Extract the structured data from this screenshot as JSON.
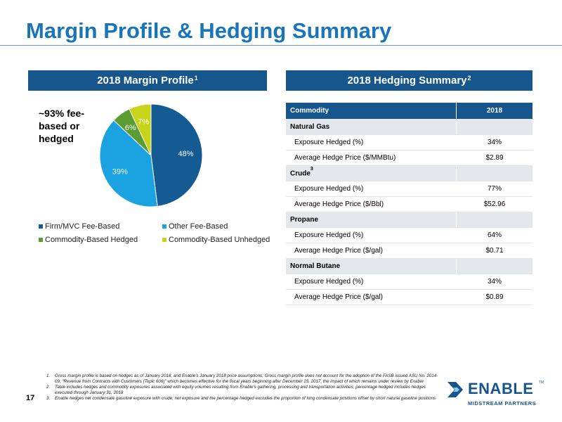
{
  "page": {
    "title": "Margin Profile & Hedging Summary",
    "page_number": "17"
  },
  "margin_section": {
    "header": "2018 Margin Profile",
    "header_sup": "1",
    "callout": "~93% fee-based or hedged"
  },
  "hedging_section": {
    "header": "2018 Hedging Summary",
    "header_sup": "2",
    "columns": [
      "Commodity",
      "2018"
    ],
    "groups": [
      {
        "name": "Natural Gas",
        "sup": "",
        "rows": [
          {
            "label": "Exposure Hedged (%)",
            "value": "34%"
          },
          {
            "label": "Average Hedge Price ($/MMBtu)",
            "value": "$2.89"
          }
        ]
      },
      {
        "name": "Crude",
        "sup": "3",
        "rows": [
          {
            "label": "Exposure Hedged (%)",
            "value": "77%"
          },
          {
            "label": "Average Hedge Price ($/Bbl)",
            "value": "$52.96"
          }
        ]
      },
      {
        "name": "Propane",
        "sup": "",
        "rows": [
          {
            "label": "Exposure Hedged (%)",
            "value": "64%"
          },
          {
            "label": "Average Hedge Price ($/gal)",
            "value": "$0.71"
          }
        ]
      },
      {
        "name": "Normal Butane",
        "sup": "",
        "rows": [
          {
            "label": "Exposure Hedged (%)",
            "value": "34%"
          },
          {
            "label": "Average Hedge Price ($/gal)",
            "value": "$0.89"
          }
        ]
      }
    ]
  },
  "chart_data": {
    "type": "pie",
    "categories": [
      "Firm/MVC Fee-Based",
      "Other Fee-Based",
      "Commodity-Based Hedged",
      "Commodity-Based Unhedged"
    ],
    "values": [
      48,
      39,
      6,
      7
    ],
    "labels": [
      "48%",
      "39%",
      "6%",
      "7%"
    ],
    "colors": [
      "#145a93",
      "#1aa3e0",
      "#5b9c33",
      "#c7d41a"
    ],
    "label_colors": [
      "#ffffff",
      "#ffffff",
      "#ffffff",
      "#ffffff"
    ],
    "legend_placement": "bottom"
  },
  "footnotes": [
    {
      "n": "1.",
      "text": "Gross margin profile is based on hedges as of January 2018, and Enable's January 2018 price assumptions; Gross margin profile does not account for the adoption of the FASB issued ASU No. 2014-09, \"Revenue from Contracts with Customers (Topic 606)\" which becomes effective for the fiscal years beginning after December 15, 2017, the impact of which remains under review by Enable"
    },
    {
      "n": "2.",
      "text": "Table includes hedges and commodity exposures associated with equity volumes resulting from Enable's gathering, processing and transportation activities; percentage hedged includes hedges executed through January 31, 2018"
    },
    {
      "n": "3.",
      "text": "Enable hedges net condensate gasoline exposure with crude; net exposure and the percentage hedged excludes the proportion of long condensate positions offset by short natural gasoline positions"
    }
  ],
  "logo": {
    "text": "ENABLE",
    "tm": "TM",
    "subtitle": "MIDSTREAM PARTNERS",
    "color_dark": "#17558d",
    "color_light": "#8cc8ea"
  }
}
